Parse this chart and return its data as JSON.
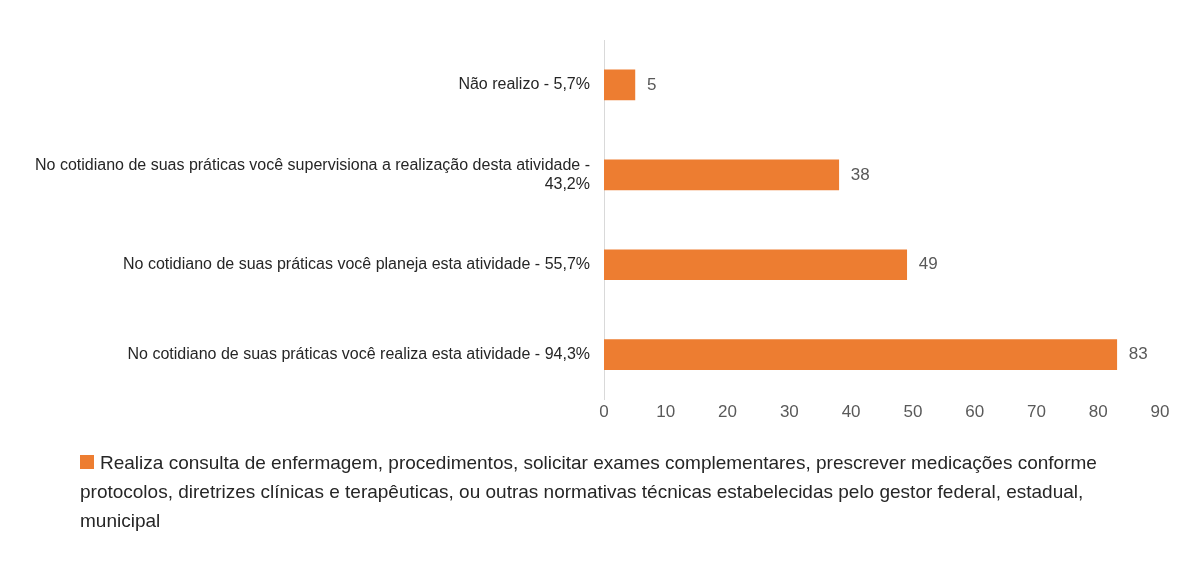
{
  "chart_data": {
    "type": "bar",
    "orientation": "horizontal",
    "categories": [
      "Não realizo - 5,7%",
      "No cotidiano de suas práticas você supervisiona a realização desta atividade - 43,2%",
      "No cotidiano de suas práticas você planeja esta atividade - 55,7%",
      "No cotidiano de suas práticas você realiza esta atividade - 94,3%"
    ],
    "series": [
      {
        "name": "Realiza consulta de enfermagem, procedimentos, solicitar exames complementares, prescrever medicações conforme protocolos, diretrizes clínicas e terapêuticas, ou outras normativas técnicas estabelecidas pelo gestor federal, estadual, municipal",
        "color": "#ed7d31",
        "values": [
          5,
          38,
          49,
          83
        ]
      }
    ],
    "xlim": [
      0,
      90
    ],
    "xticks": [
      0,
      10,
      20,
      30,
      40,
      50,
      60,
      70,
      80,
      90
    ],
    "grid": false,
    "legend": "bottom",
    "data_labels": true
  }
}
